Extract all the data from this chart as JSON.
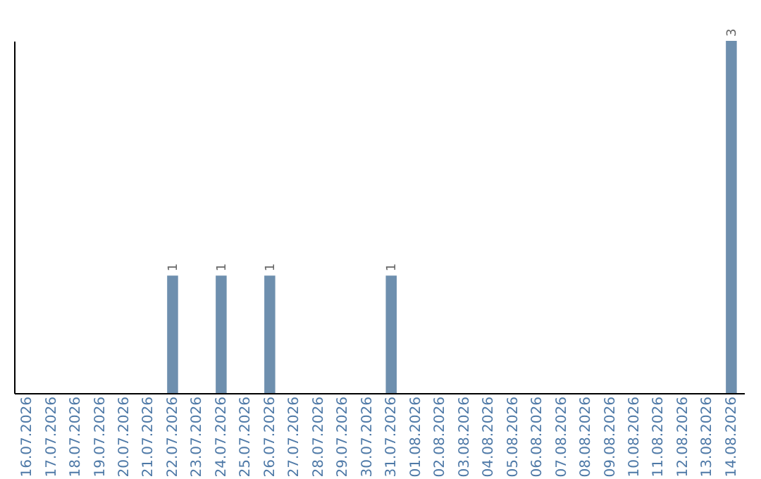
{
  "chart_data": {
    "type": "bar",
    "categories": [
      "16.07.2026",
      "17.07.2026",
      "18.07.2026",
      "19.07.2026",
      "20.07.2026",
      "21.07.2026",
      "22.07.2026",
      "23.07.2026",
      "24.07.2026",
      "25.07.2026",
      "26.07.2026",
      "27.07.2026",
      "28.07.2026",
      "29.07.2026",
      "30.07.2026",
      "31.07.2026",
      "01.08.2026",
      "02.08.2026",
      "03.08.2026",
      "04.08.2026",
      "05.08.2026",
      "06.08.2026",
      "07.08.2026",
      "08.08.2026",
      "09.08.2026",
      "10.08.2026",
      "11.08.2026",
      "12.08.2026",
      "13.08.2026",
      "14.08.2026"
    ],
    "values": [
      0,
      0,
      0,
      0,
      0,
      0,
      1,
      0,
      1,
      0,
      1,
      0,
      0,
      0,
      0,
      1,
      0,
      0,
      0,
      0,
      0,
      0,
      0,
      0,
      0,
      0,
      0,
      0,
      0,
      3
    ],
    "value_labels": [
      null,
      null,
      null,
      null,
      null,
      null,
      "1",
      null,
      "1",
      null,
      "1",
      null,
      null,
      null,
      null,
      "1",
      null,
      null,
      null,
      null,
      null,
      null,
      null,
      null,
      null,
      null,
      null,
      null,
      null,
      "3"
    ],
    "color": "#6e8fae",
    "tick_labels": "x"
  }
}
